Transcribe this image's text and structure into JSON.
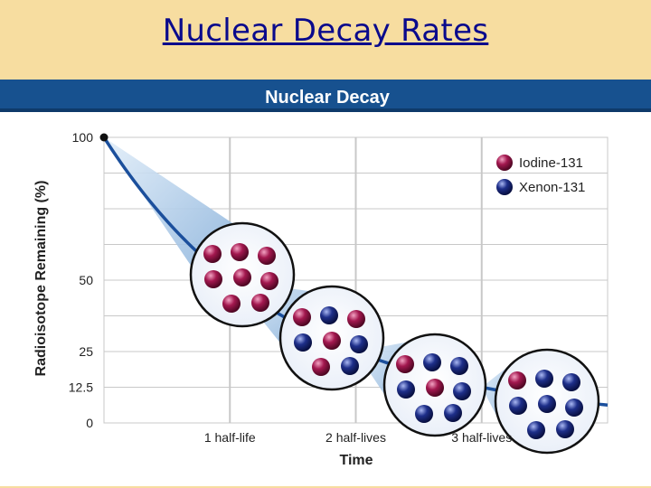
{
  "slide": {
    "title": "Nuclear Decay Rates"
  },
  "colors": {
    "page_background": "#f7dda0",
    "header_band": "#17518f",
    "curve": "#1b4f9c",
    "grid": "#c8c8c8",
    "iodine": "#a3184f",
    "xenon": "#1e2f8a",
    "callout": "#a9c8e6"
  },
  "chart_data": {
    "type": "line",
    "title": "Nuclear Decay",
    "xlabel": "Time",
    "ylabel": "Radioisotope Remaining (%)",
    "categories": [
      "1 half-life",
      "2 half-lives",
      "3 half-lives"
    ],
    "y_ticks": [
      "100",
      "50",
      "25",
      "12.5",
      "0"
    ],
    "y_tick_values": [
      100,
      50,
      25,
      12.5,
      0
    ],
    "ylim": [
      0,
      100
    ],
    "xlim": [
      0,
      4
    ],
    "grid": true,
    "legend_position": "top-right",
    "legend": [
      {
        "label": "Iodine-131",
        "color": "#a3184f"
      },
      {
        "label": "Xenon-131",
        "color": "#1e2f8a"
      }
    ],
    "series": [
      {
        "x": [
          0,
          1,
          2,
          3
        ],
        "values": [
          100,
          50,
          25,
          12.5
        ]
      }
    ],
    "samples": [
      {
        "half_lives": 0,
        "iodine_count": 8,
        "xenon_count": 0
      },
      {
        "half_lives": 1,
        "iodine_count": 4,
        "xenon_count": 4
      },
      {
        "half_lives": 2,
        "iodine_count": 2,
        "xenon_count": 6
      },
      {
        "half_lives": 3,
        "iodine_count": 1,
        "xenon_count": 7
      }
    ]
  }
}
